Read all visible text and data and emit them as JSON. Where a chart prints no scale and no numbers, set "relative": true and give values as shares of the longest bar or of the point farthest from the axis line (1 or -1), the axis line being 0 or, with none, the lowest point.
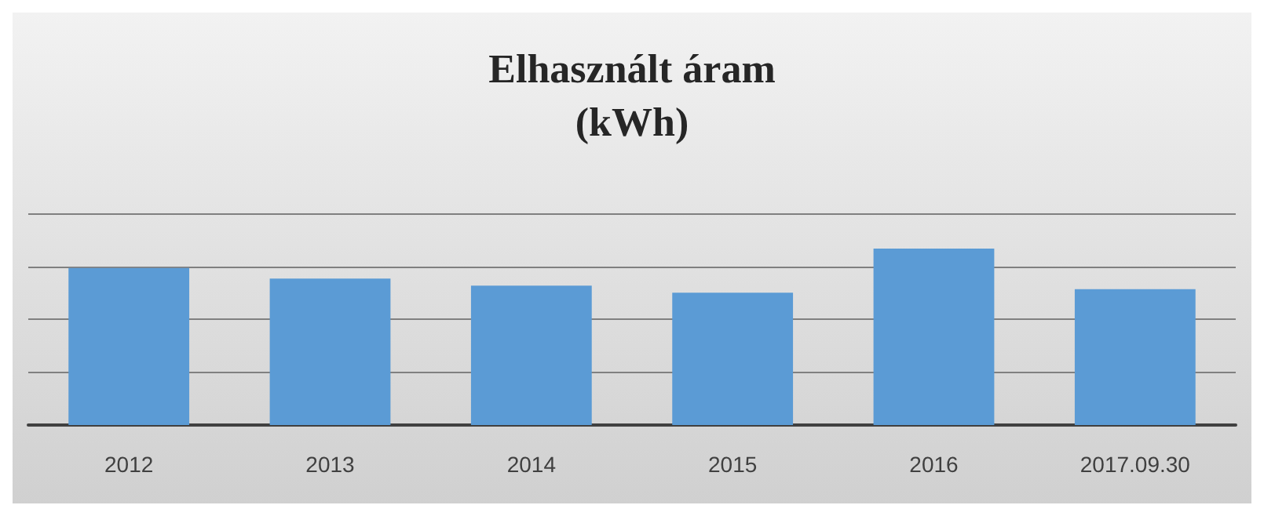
{
  "chart_data": {
    "type": "bar",
    "title": "Elhasznált áram\n(kWh)",
    "categories": [
      "2012",
      "2013",
      "2014",
      "2015",
      "2016",
      "2017.09.30"
    ],
    "values": [
      0.89,
      0.83,
      0.79,
      0.75,
      1,
      0.77
    ],
    "color": "#5b9bd5",
    "relative": true,
    "grid": "y"
  }
}
